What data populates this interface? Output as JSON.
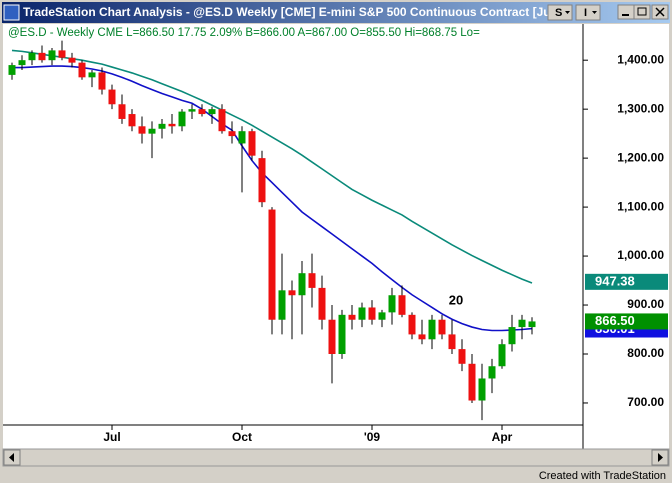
{
  "window": {
    "title": "TradeStation Chart Analysis - @ES.D  Weekly  [CME] E-mini S&P 500 Continuous Contract [Ju",
    "buttons": [
      "S",
      "I"
    ],
    "footer": "Created with TradeStation"
  },
  "chart_data": {
    "type": "candlestick",
    "header": "@ES.D - Weekly  CME  L=866.50  17.75  2.09%  B=866.00  A=867.00  O=855.50  Hi=868.75  Lo=",
    "categories": [
      null,
      null,
      null,
      null,
      null,
      null,
      null,
      null,
      null,
      null,
      "Jul",
      null,
      null,
      null,
      null,
      null,
      null,
      null,
      null,
      null,
      null,
      null,
      null,
      "Oct",
      null,
      null,
      null,
      null,
      null,
      null,
      null,
      null,
      null,
      null,
      null,
      null,
      "'09",
      null,
      null,
      null,
      null,
      null,
      null,
      null,
      null,
      null,
      null,
      null,
      null,
      "Apr",
      null,
      null,
      null
    ],
    "open": [
      1370,
      1390,
      1400,
      1415,
      1400,
      1420,
      1405,
      1395,
      1365,
      1375,
      1340,
      1310,
      1290,
      1265,
      1250,
      1260,
      1270,
      1265,
      1295,
      1300,
      1290,
      1300,
      1255,
      1230,
      1255,
      1200,
      1095,
      870,
      930,
      920,
      965,
      935,
      870,
      800,
      880,
      870,
      895,
      870,
      885,
      920,
      880,
      840,
      830,
      870,
      840,
      810,
      780,
      705,
      750,
      775,
      820,
      855,
      855
    ],
    "high": [
      1395,
      1410,
      1420,
      1430,
      1425,
      1440,
      1415,
      1400,
      1380,
      1385,
      1350,
      1330,
      1300,
      1285,
      1275,
      1280,
      1290,
      1300,
      1310,
      1310,
      1305,
      1310,
      1275,
      1265,
      1260,
      1215,
      1100,
      1005,
      950,
      990,
      1005,
      960,
      900,
      890,
      900,
      905,
      910,
      890,
      935,
      940,
      885,
      870,
      880,
      880,
      870,
      830,
      800,
      780,
      790,
      830,
      880,
      880,
      875
    ],
    "low": [
      1360,
      1380,
      1390,
      1395,
      1390,
      1400,
      1385,
      1360,
      1345,
      1330,
      1300,
      1270,
      1255,
      1230,
      1200,
      1240,
      1250,
      1255,
      1280,
      1285,
      1270,
      1250,
      1230,
      1130,
      1195,
      1100,
      840,
      840,
      830,
      840,
      895,
      850,
      740,
      790,
      850,
      855,
      860,
      855,
      860,
      875,
      830,
      820,
      810,
      830,
      800,
      765,
      700,
      665,
      720,
      770,
      805,
      830,
      840
    ],
    "close": [
      1390,
      1400,
      1415,
      1400,
      1420,
      1405,
      1395,
      1365,
      1375,
      1340,
      1310,
      1280,
      1265,
      1250,
      1260,
      1270,
      1265,
      1295,
      1300,
      1290,
      1300,
      1255,
      1245,
      1255,
      1205,
      1110,
      870,
      930,
      920,
      965,
      935,
      870,
      800,
      880,
      870,
      895,
      870,
      885,
      920,
      880,
      840,
      830,
      870,
      840,
      810,
      780,
      705,
      750,
      775,
      820,
      855,
      870,
      866.5
    ],
    "up_color": "#00a000",
    "down_color": "#ee1111",
    "lines": [
      {
        "color": "#1010c8",
        "values": [
          1385,
          1385,
          1386,
          1387,
          1388,
          1388,
          1387,
          1385,
          1382,
          1378,
          1372,
          1365,
          1357,
          1348,
          1340,
          1332,
          1325,
          1318,
          1312,
          1300,
          1285,
          1270,
          1257,
          1225,
          1195,
          1170,
          1150,
          1130,
          1110,
          1090,
          1075,
          1060,
          1045,
          1030,
          1015,
          1000,
          985,
          968,
          952,
          936,
          921,
          908,
          895,
          882,
          871,
          862,
          855,
          850,
          848,
          848,
          849,
          850,
          852
        ]
      },
      {
        "color": "#0a8a7a",
        "values": [
          1420,
          1418,
          1415,
          1412,
          1409,
          1406,
          1403,
          1400,
          1396,
          1392,
          1386,
          1380,
          1374,
          1367,
          1360,
          1352,
          1344,
          1336,
          1327,
          1318,
          1308,
          1298,
          1288,
          1278,
          1267,
          1255,
          1243,
          1231,
          1219,
          1206,
          1192,
          1178,
          1164,
          1150,
          1136,
          1125,
          1114,
          1104,
          1094,
          1084,
          1071,
          1059,
          1047,
          1035,
          1023,
          1012,
          1001,
          991,
          981,
          971,
          962,
          953,
          945
        ]
      }
    ],
    "annotation": "20",
    "price_markers": [
      {
        "value": 947.38,
        "label": "947.38",
        "color": "#0a8a7a"
      },
      {
        "value": 850.01,
        "label": "850.01",
        "color": "#1010e0"
      },
      {
        "value": 866.5,
        "label": "866.50",
        "color": "#009000"
      }
    ],
    "ylim": [
      655,
      1478
    ],
    "yticks": [
      {
        "value": 700,
        "label": "700.00"
      },
      {
        "value": 800,
        "label": "800.00"
      },
      {
        "value": 900,
        "label": "900.00"
      },
      {
        "value": 1000,
        "label": "1,000.00"
      },
      {
        "value": 1100,
        "label": "1,100.00"
      },
      {
        "value": 1200,
        "label": "1,200.00"
      },
      {
        "value": 1300,
        "label": "1,300.00"
      },
      {
        "value": 1400,
        "label": "1,400.00"
      }
    ]
  }
}
